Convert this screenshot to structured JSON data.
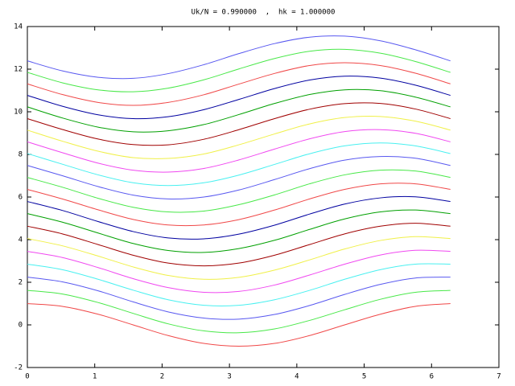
{
  "chart_data": {
    "type": "line",
    "title": "Uk/N = 0.990000  ,  hk = 1.000000",
    "x": [
      0,
      0.52,
      1.05,
      1.57,
      2.09,
      2.62,
      3.14,
      3.67,
      4.19,
      4.71,
      5.24,
      5.76,
      6.28
    ],
    "series": [
      {
        "color": "#f04848",
        "values": [
          1,
          0.87,
          0.5,
          0,
          -0.5,
          -0.87,
          -1,
          -0.87,
          -0.5,
          0,
          0.5,
          0.87,
          1
        ]
      },
      {
        "color": "#48e848",
        "values": [
          1.62,
          1.45,
          1.05,
          0.54,
          0.05,
          -0.28,
          -0.37,
          -0.19,
          0.21,
          0.71,
          1.2,
          1.53,
          1.62
        ]
      },
      {
        "color": "#5858f0",
        "values": [
          2.24,
          2.02,
          1.6,
          1.08,
          0.61,
          0.32,
          0.27,
          0.49,
          0.91,
          1.43,
          1.9,
          2.2,
          2.24
        ]
      },
      {
        "color": "#48f0f0",
        "values": [
          2.85,
          2.59,
          2.14,
          1.63,
          1.18,
          0.92,
          0.92,
          1.18,
          1.62,
          2.14,
          2.59,
          2.85,
          2.85
        ]
      },
      {
        "color": "#f048f0",
        "values": [
          3.45,
          3.16,
          2.69,
          2.17,
          1.75,
          1.53,
          1.57,
          1.87,
          2.34,
          2.85,
          3.28,
          3.5,
          3.45
        ]
      },
      {
        "color": "#f0f048",
        "values": [
          4.05,
          3.71,
          3.23,
          2.72,
          2.32,
          2.14,
          2.23,
          2.57,
          3.05,
          3.56,
          3.96,
          4.14,
          4.05
        ]
      },
      {
        "color": "#a00000",
        "values": [
          4.63,
          4.27,
          3.77,
          3.27,
          2.9,
          2.77,
          2.9,
          3.27,
          3.77,
          4.27,
          4.63,
          4.77,
          4.63
        ]
      },
      {
        "color": "#00a000",
        "values": [
          5.22,
          4.82,
          4.31,
          3.82,
          3.49,
          3.4,
          3.58,
          3.97,
          4.48,
          4.97,
          5.3,
          5.39,
          5.22
        ]
      },
      {
        "color": "#0000a0",
        "values": [
          5.79,
          5.37,
          4.85,
          4.38,
          4.08,
          4.04,
          4.26,
          4.68,
          5.2,
          5.67,
          5.96,
          6.01,
          5.79
        ]
      },
      {
        "color": "#f04848",
        "values": [
          6.36,
          5.91,
          5.4,
          4.95,
          4.69,
          4.69,
          4.94,
          5.39,
          5.91,
          6.36,
          6.62,
          6.62,
          6.36
        ]
      },
      {
        "color": "#48e848",
        "values": [
          6.92,
          6.46,
          5.94,
          5.52,
          5.3,
          5.34,
          5.64,
          6.1,
          6.62,
          7.04,
          7.26,
          7.22,
          6.92
        ]
      },
      {
        "color": "#5858f0",
        "values": [
          7.48,
          7,
          6.49,
          6.09,
          5.91,
          6,
          6.33,
          6.82,
          7.33,
          7.73,
          7.9,
          7.82,
          7.48
        ]
      },
      {
        "color": "#48f0f0",
        "values": [
          8.04,
          7.54,
          7.04,
          6.67,
          6.54,
          6.67,
          7.03,
          7.53,
          8.03,
          8.4,
          8.54,
          8.4,
          8.04
        ]
      },
      {
        "color": "#f048f0",
        "values": [
          8.59,
          8.08,
          7.59,
          7.26,
          7.17,
          7.34,
          7.74,
          8.25,
          8.73,
          9.07,
          9.16,
          8.99,
          8.59
        ]
      },
      {
        "color": "#f0f048",
        "values": [
          9.14,
          8.62,
          8.15,
          7.85,
          7.81,
          8.02,
          8.45,
          8.96,
          9.43,
          9.73,
          9.78,
          9.56,
          9.14
        ]
      },
      {
        "color": "#a00000",
        "values": [
          9.68,
          9.17,
          8.72,
          8.46,
          8.45,
          8.71,
          9.16,
          9.68,
          10.12,
          10.38,
          10.39,
          10.13,
          9.68
        ]
      },
      {
        "color": "#00a000",
        "values": [
          10.23,
          9.71,
          9.28,
          9.06,
          9.11,
          9.4,
          9.87,
          10.39,
          10.81,
          11.03,
          10.99,
          10.69,
          10.23
        ]
      },
      {
        "color": "#0000a0",
        "values": [
          10.77,
          10.26,
          9.86,
          9.68,
          9.77,
          10.1,
          10.58,
          11.09,
          11.49,
          11.67,
          11.58,
          11.25,
          10.77
        ]
      },
      {
        "color": "#f04848",
        "values": [
          11.31,
          10.81,
          10.44,
          10.3,
          10.44,
          10.8,
          11.3,
          11.8,
          12.17,
          12.3,
          12.17,
          11.81,
          11.31
        ]
      },
      {
        "color": "#48e848",
        "values": [
          11.85,
          11.36,
          11.03,
          10.94,
          11.11,
          11.5,
          12.01,
          12.5,
          12.84,
          12.93,
          12.75,
          12.36,
          11.85
        ]
      },
      {
        "color": "#5858f0",
        "values": [
          12.39,
          11.92,
          11.62,
          11.57,
          11.79,
          12.21,
          12.73,
          13.2,
          13.5,
          13.55,
          13.33,
          12.91,
          12.39
        ]
      }
    ],
    "xlim": [
      0,
      7
    ],
    "xticks": [
      0,
      1,
      2,
      3,
      4,
      5,
      6,
      7
    ],
    "ylim": [
      -2,
      14
    ],
    "yticks": [
      -2,
      0,
      2,
      4,
      6,
      8,
      10,
      12,
      14
    ],
    "grid": false
  }
}
